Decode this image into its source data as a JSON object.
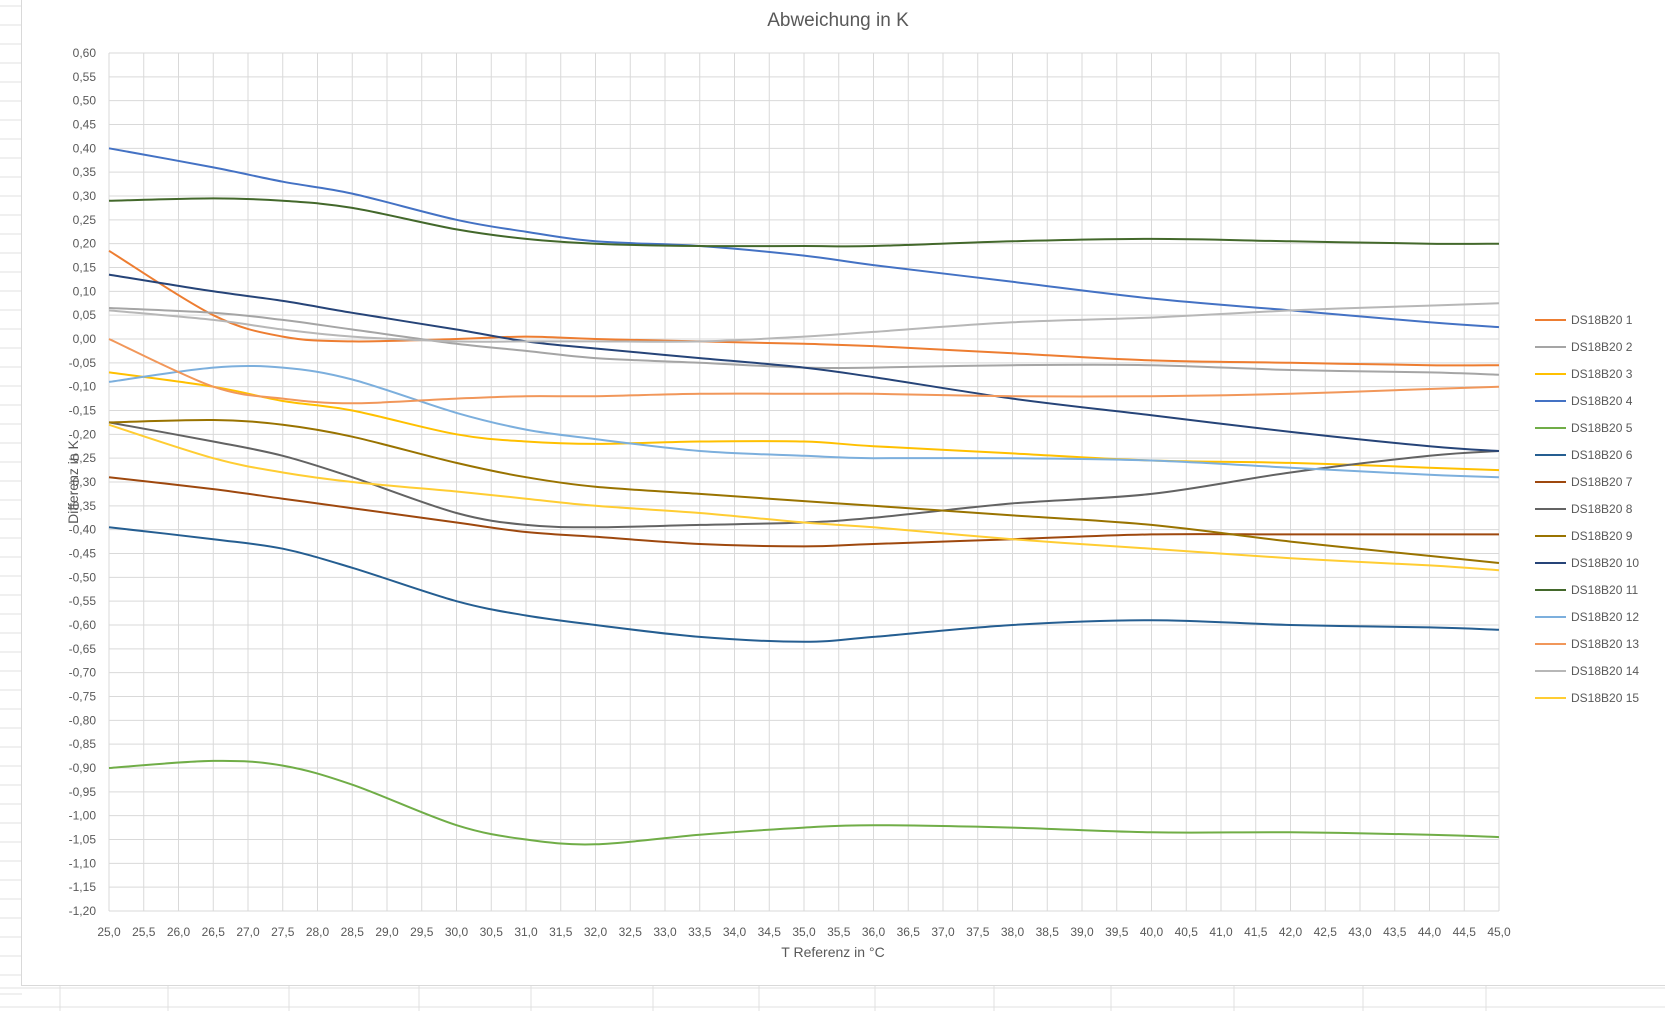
{
  "chart_data": {
    "type": "line",
    "title": "Abweichung in K",
    "xlabel": "T Referenz in °C",
    "ylabel": "Differenz in K",
    "xlim": [
      25.0,
      45.0
    ],
    "ylim": [
      -1.2,
      0.6
    ],
    "ystep": 0.05,
    "xstep": 0.5,
    "grid": true,
    "legend_position": "right",
    "x": [
      25,
      26.5,
      27.5,
      28.5,
      30,
      31,
      32,
      33.5,
      35,
      36,
      38,
      40,
      42,
      44,
      45
    ],
    "series": [
      {
        "name": "DS18B20 1",
        "color": "#ED7D31",
        "values": [
          0.185,
          0.05,
          0.005,
          -0.005,
          0.0,
          0.005,
          0.0,
          -0.005,
          -0.01,
          -0.015,
          -0.03,
          -0.045,
          -0.05,
          -0.055,
          -0.055
        ]
      },
      {
        "name": "DS18B20 2",
        "color": "#A5A5A5",
        "values": [
          0.065,
          0.055,
          0.04,
          0.02,
          -0.01,
          -0.025,
          -0.04,
          -0.05,
          -0.06,
          -0.06,
          -0.055,
          -0.055,
          -0.065,
          -0.07,
          -0.075
        ]
      },
      {
        "name": "DS18B20 3",
        "color": "#FFC000",
        "values": [
          -0.07,
          -0.1,
          -0.13,
          -0.15,
          -0.2,
          -0.215,
          -0.22,
          -0.215,
          -0.215,
          -0.225,
          -0.24,
          -0.255,
          -0.26,
          -0.27,
          -0.275
        ]
      },
      {
        "name": "DS18B20 4",
        "color": "#4472C4",
        "values": [
          0.4,
          0.36,
          0.33,
          0.305,
          0.25,
          0.225,
          0.205,
          0.195,
          0.175,
          0.155,
          0.12,
          0.085,
          0.06,
          0.035,
          0.025
        ]
      },
      {
        "name": "DS18B20 5",
        "color": "#70AD47",
        "values": [
          -0.9,
          -0.885,
          -0.895,
          -0.935,
          -1.02,
          -1.05,
          -1.06,
          -1.04,
          -1.025,
          -1.02,
          -1.025,
          -1.035,
          -1.035,
          -1.04,
          -1.045
        ]
      },
      {
        "name": "DS18B20 6",
        "color": "#255E91",
        "values": [
          -0.395,
          -0.42,
          -0.44,
          -0.48,
          -0.55,
          -0.58,
          -0.6,
          -0.625,
          -0.635,
          -0.625,
          -0.6,
          -0.59,
          -0.6,
          -0.605,
          -0.61
        ]
      },
      {
        "name": "DS18B20 7",
        "color": "#9E480E",
        "values": [
          -0.29,
          -0.315,
          -0.335,
          -0.355,
          -0.385,
          -0.405,
          -0.415,
          -0.43,
          -0.435,
          -0.43,
          -0.42,
          -0.41,
          -0.41,
          -0.41,
          -0.41
        ]
      },
      {
        "name": "DS18B20 8",
        "color": "#636363",
        "values": [
          -0.175,
          -0.215,
          -0.245,
          -0.29,
          -0.365,
          -0.39,
          -0.395,
          -0.39,
          -0.385,
          -0.375,
          -0.345,
          -0.325,
          -0.28,
          -0.245,
          -0.235
        ]
      },
      {
        "name": "DS18B20 9",
        "color": "#997300",
        "values": [
          -0.175,
          -0.17,
          -0.18,
          -0.205,
          -0.26,
          -0.29,
          -0.31,
          -0.325,
          -0.34,
          -0.35,
          -0.37,
          -0.39,
          -0.425,
          -0.455,
          -0.47
        ]
      },
      {
        "name": "DS18B20 10",
        "color": "#264478",
        "values": [
          0.135,
          0.1,
          0.08,
          0.055,
          0.02,
          -0.005,
          -0.02,
          -0.04,
          -0.06,
          -0.08,
          -0.125,
          -0.16,
          -0.195,
          -0.225,
          -0.235
        ]
      },
      {
        "name": "DS18B20 11",
        "color": "#43682B",
        "values": [
          0.29,
          0.295,
          0.29,
          0.275,
          0.23,
          0.21,
          0.2,
          0.195,
          0.195,
          0.195,
          0.205,
          0.21,
          0.205,
          0.2,
          0.2
        ]
      },
      {
        "name": "DS18B20 12",
        "color": "#7CAFDD",
        "values": [
          -0.09,
          -0.06,
          -0.06,
          -0.085,
          -0.155,
          -0.19,
          -0.21,
          -0.235,
          -0.245,
          -0.25,
          -0.25,
          -0.255,
          -0.27,
          -0.285,
          -0.29
        ]
      },
      {
        "name": "DS18B20 13",
        "color": "#F1975A",
        "values": [
          0.0,
          -0.1,
          -0.125,
          -0.135,
          -0.125,
          -0.12,
          -0.12,
          -0.115,
          -0.115,
          -0.115,
          -0.12,
          -0.12,
          -0.115,
          -0.105,
          -0.1
        ]
      },
      {
        "name": "DS18B20 14",
        "color": "#B7B7B7",
        "values": [
          0.06,
          0.04,
          0.02,
          0.005,
          -0.005,
          -0.005,
          -0.005,
          -0.005,
          0.005,
          0.015,
          0.035,
          0.045,
          0.06,
          0.07,
          0.075
        ]
      },
      {
        "name": "DS18B20 15",
        "color": "#FFCD33",
        "values": [
          -0.18,
          -0.25,
          -0.28,
          -0.3,
          -0.32,
          -0.335,
          -0.35,
          -0.365,
          -0.385,
          -0.395,
          -0.42,
          -0.44,
          -0.46,
          -0.475,
          -0.485
        ]
      }
    ]
  }
}
